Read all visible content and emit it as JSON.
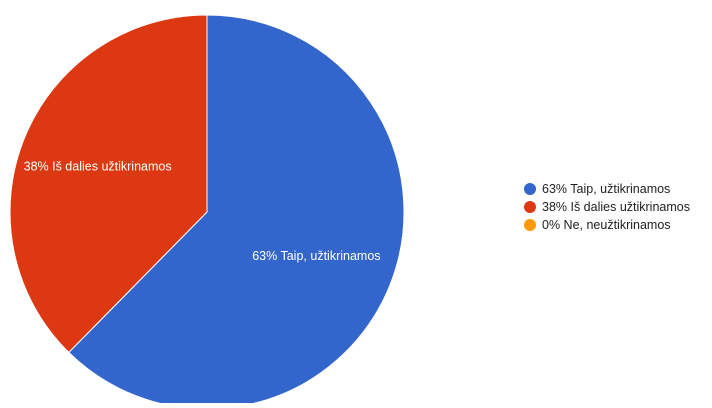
{
  "chart_data": {
    "type": "pie",
    "title": "",
    "legend_position": "right",
    "slices": [
      {
        "label": "Taip, užtikrinamos",
        "value": 63,
        "display": "63% Taip, užtikrinamos",
        "color": "#3366cc"
      },
      {
        "label": "Iš dalies užtikrinamos",
        "value": 38,
        "display": "38% Iš dalies užtikrinamos",
        "color": "#dc3912"
      },
      {
        "label": "Ne, neužtikrinamos",
        "value": 0,
        "display": "0% Ne, neužtikrinamos",
        "color": "#ff9900"
      }
    ]
  }
}
